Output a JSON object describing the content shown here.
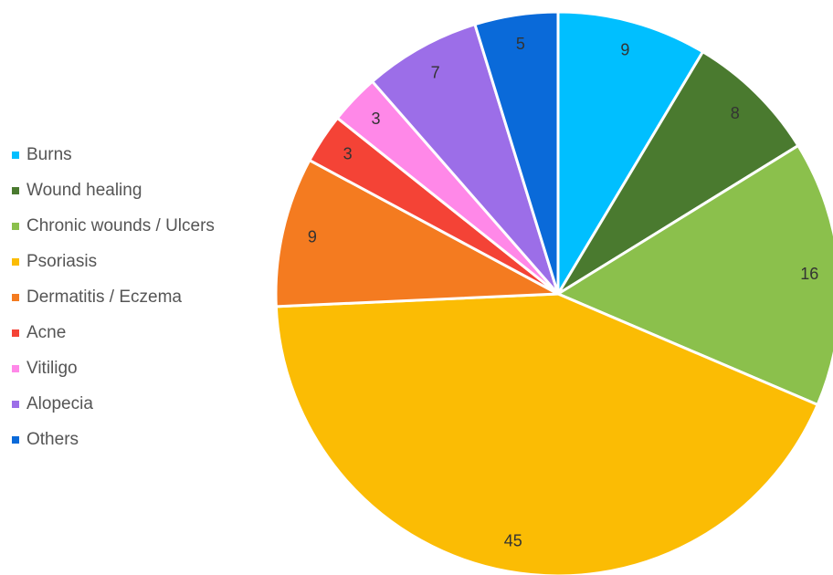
{
  "chart_data": {
    "type": "pie",
    "categories": [
      "Burns",
      "Wound healing",
      "Chronic wounds / Ulcers",
      "Psoriasis",
      "Dermatitis / Eczema",
      "Acne",
      "Vitiligo",
      "Alopecia",
      "Others"
    ],
    "values": [
      9,
      8,
      16,
      45,
      9,
      3,
      3,
      7,
      5
    ],
    "colors": [
      "#00bfff",
      "#4a7a2f",
      "#8bc04c",
      "#fbbc04",
      "#f47b20",
      "#f44336",
      "#ff88e8",
      "#9c6ee8",
      "#0a6ad9"
    ],
    "start_angle_deg": 0,
    "direction": "clockwise",
    "legend_position": "left",
    "data_labels": true
  }
}
